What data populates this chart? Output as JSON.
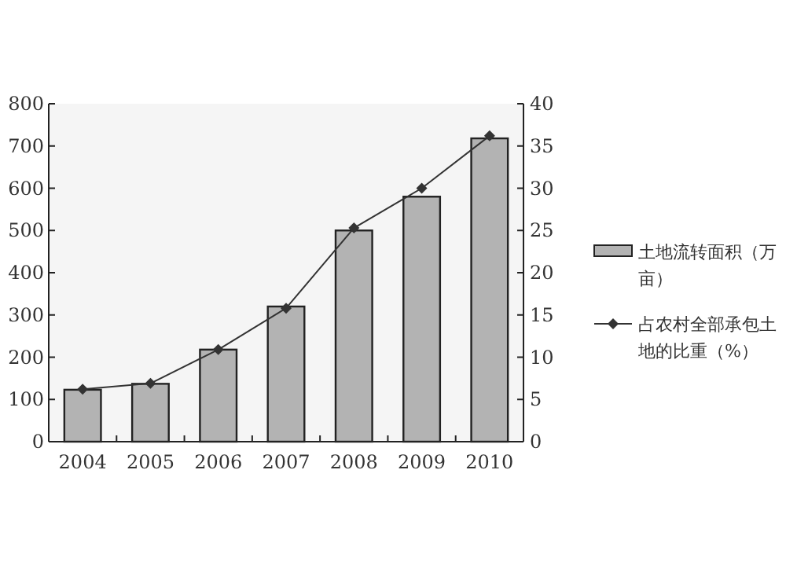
{
  "chart_data": {
    "type": "bar",
    "categories": [
      "2004",
      "2005",
      "2006",
      "2007",
      "2008",
      "2009",
      "2010"
    ],
    "series": [
      {
        "name": "土地流转面积（万亩）",
        "color": "#b3b3b3",
        "values": [
          123,
          137,
          218,
          320,
          500,
          580,
          718
        ]
      },
      {
        "name": "占农村全部承包土地的比重（%）",
        "type": "line",
        "axis": "y2",
        "color": "#333333",
        "marker": "diamond",
        "values": [
          6.2,
          6.9,
          10.9,
          15.8,
          25.3,
          30.0,
          36.2
        ]
      }
    ],
    "ylim": [
      0,
      800
    ],
    "yticks": [
      0,
      100,
      200,
      300,
      400,
      500,
      600,
      700,
      800
    ],
    "y2lim": [
      0,
      40
    ],
    "y2ticks": [
      0,
      5,
      10,
      15,
      20,
      25,
      30,
      35,
      40
    ],
    "grid": false,
    "legend": "right"
  }
}
